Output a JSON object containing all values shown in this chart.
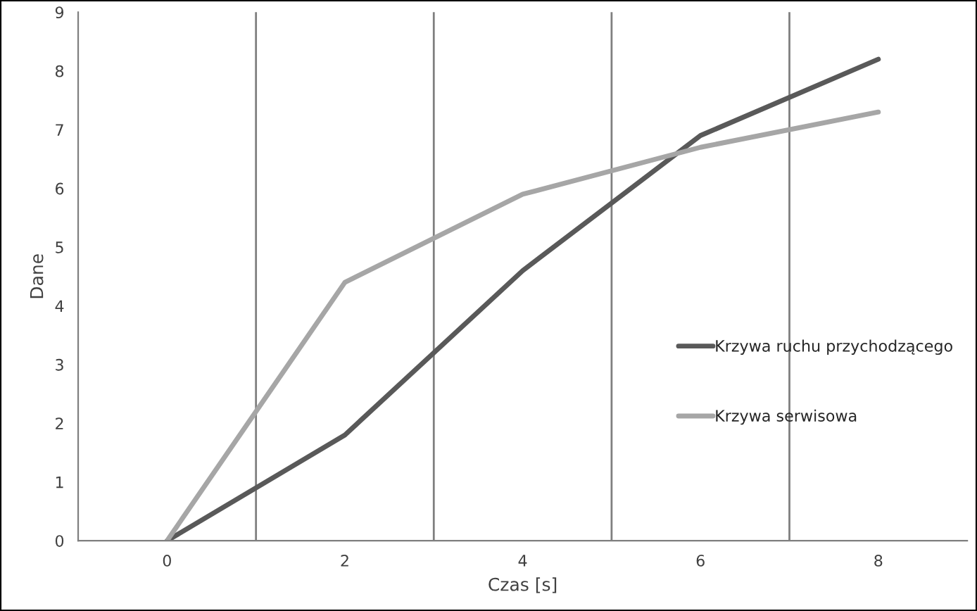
{
  "chart_data": {
    "type": "line",
    "xlabel": "Czas [s]",
    "ylabel": "Dane",
    "categories": [
      "0",
      "2",
      "4",
      "6",
      "8"
    ],
    "series": [
      {
        "name": "Krzywa ruchu przychodzącego",
        "color": "#595959",
        "values": [
          0,
          1.8,
          4.6,
          6.9,
          8.2
        ]
      },
      {
        "name": "Krzywa serwisowa",
        "color": "#a6a6a6",
        "values": [
          0,
          4.4,
          5.9,
          6.7,
          7.3
        ]
      }
    ],
    "ylim": [
      0,
      9
    ],
    "yticks": [
      0,
      1,
      2,
      3,
      4,
      5,
      6,
      7,
      8,
      9
    ],
    "grid": "x",
    "legend": "right",
    "marker": "none",
    "line_style": "solid"
  }
}
